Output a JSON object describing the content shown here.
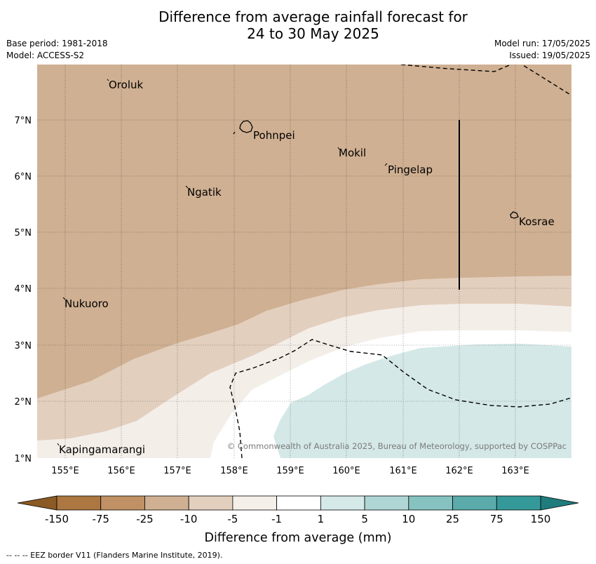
{
  "title": {
    "line1": "Difference from average rainfall forecast for",
    "line2": "24 to 30 May 2025"
  },
  "meta_left": {
    "base_period": "Base period: 1981-2018",
    "model": "Model: ACCESS-S2"
  },
  "meta_right": {
    "model_run": "Model run: 17/05/2025",
    "issued": "Issued: 19/05/2025"
  },
  "map": {
    "lat_labels": [
      "1°N",
      "2°N",
      "3°N",
      "4°N",
      "5°N",
      "6°N",
      "7°N"
    ],
    "lon_labels": [
      "155°E",
      "156°E",
      "157°E",
      "158°E",
      "159°E",
      "160°E",
      "161°E",
      "162°E",
      "163°E"
    ],
    "places": [
      {
        "name": "Oroluk"
      },
      {
        "name": "Pohnpei"
      },
      {
        "name": "Mokil"
      },
      {
        "name": "Pingelap"
      },
      {
        "name": "Ngatik"
      },
      {
        "name": "Kosrae"
      },
      {
        "name": "Nukuoro"
      },
      {
        "name": "Kapingamarangi"
      }
    ],
    "copyright": "© Commonwealth of Australia 2025, Bureau of Meteorology, supported by COSPPac",
    "colors": {
      "land_dry": "#cfb092",
      "dry_light": "#e3cfbe",
      "dry_lighter": "#f4eee9",
      "neutral": "#ffffff",
      "wet_light": "#d4e8e7"
    }
  },
  "colorbar": {
    "ticks": [
      "-150",
      "-75",
      "-25",
      "-10",
      "-5",
      "-1",
      "1",
      "5",
      "10",
      "25",
      "75",
      "150"
    ],
    "colors": [
      "#ac7740",
      "#bf9164",
      "#cfb092",
      "#e3cfbe",
      "#f5efe9",
      "#ffffff",
      "#d5e9e8",
      "#afd6d5",
      "#86c2c0",
      "#5aabaa",
      "#35999a"
    ],
    "extend_low_color": "#8c5a24",
    "extend_high_color": "#1f7c7d",
    "label": "Difference from average (mm)"
  },
  "footnote": "--  --  -- EEZ border V11 (Flanders Marine Institute, 2019)."
}
